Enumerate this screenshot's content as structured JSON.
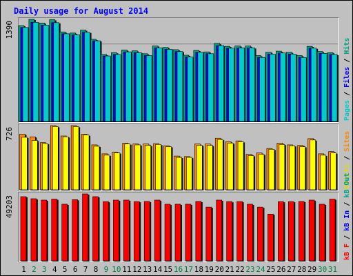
{
  "chart_data": {
    "type": "bar",
    "title": "Daily usage for August 2014",
    "categories": [
      "1",
      "2",
      "3",
      "4",
      "5",
      "6",
      "7",
      "8",
      "9",
      "10",
      "11",
      "12",
      "13",
      "14",
      "15",
      "16",
      "17",
      "18",
      "19",
      "20",
      "21",
      "22",
      "23",
      "24",
      "25",
      "26",
      "27",
      "28",
      "29",
      "30",
      "31"
    ],
    "weekend_days": [
      "2",
      "3",
      "9",
      "10",
      "16",
      "17",
      "23",
      "24",
      "30",
      "31"
    ],
    "panels": [
      {
        "id": "hits-files-pages",
        "max_label": "1390",
        "max_value": 1390,
        "side_labels": [
          {
            "text": "Pages",
            "color": "#00cccc"
          },
          {
            "text": "Files",
            "color": "#0000ff"
          },
          {
            "text": "Hits",
            "color": "#00a080"
          }
        ],
        "series": [
          {
            "name": "Hits",
            "color": "#00a080",
            "values": [
              1305,
              1390,
              1340,
              1385,
              1220,
              1205,
              1245,
              1120,
              915,
              940,
              975,
              965,
              925,
              1030,
              1010,
              980,
              905,
              970,
              950,
              1065,
              1025,
              1030,
              1030,
              900,
              945,
              960,
              945,
              900,
              1025,
              955,
              940
            ]
          },
          {
            "name": "Files",
            "color": "#0000ff",
            "values": [
              1280,
              1350,
              1310,
              1345,
              1195,
              1180,
              1215,
              1100,
              895,
              915,
              950,
              940,
              900,
              1005,
              985,
              955,
              880,
              945,
              925,
              1035,
              1000,
              1005,
              1005,
              875,
              920,
              935,
              920,
              875,
              1000,
              930,
              915
            ]
          },
          {
            "name": "Pages",
            "color": "#00cccc",
            "values": [
              1280,
              1350,
              1310,
              1345,
              1195,
              1180,
              1215,
              1100,
              895,
              915,
              950,
              940,
              900,
              1005,
              985,
              955,
              880,
              945,
              925,
              1035,
              1000,
              1005,
              1005,
              875,
              920,
              935,
              920,
              875,
              1000,
              930,
              915
            ]
          }
        ]
      },
      {
        "id": "visits-sites",
        "max_label": "726",
        "max_value": 726,
        "side_labels": [
          {
            "text": "Visits",
            "color": "#dddd00"
          },
          {
            "text": "Sites",
            "color": "#ff8800"
          }
        ],
        "series": [
          {
            "name": "Sites",
            "color": "#ff8800",
            "values": [
              630,
              600,
              535,
              726,
              610,
              726,
              630,
              510,
              410,
              430,
              530,
              520,
              520,
              525,
              500,
              385,
              380,
              520,
              520,
              585,
              545,
              555,
              405,
              420,
              470,
              530,
              510,
              505,
              580,
              410,
              435
            ]
          },
          {
            "name": "Visits",
            "color": "#ffff00",
            "values": [
              595,
              560,
              525,
              715,
              600,
              715,
              620,
              495,
              395,
              420,
              520,
              510,
              505,
              515,
              490,
              370,
              370,
              505,
              505,
              570,
              530,
              545,
              390,
              405,
              460,
              515,
              500,
              490,
              565,
              395,
              420
            ]
          }
        ]
      },
      {
        "id": "kbytes",
        "max_label": "49203",
        "max_value": 49203,
        "side_labels": [
          {
            "text": "kB F",
            "color": "#ff0000"
          },
          {
            "text": "kB In",
            "color": "#0000ff"
          },
          {
            "text": "kB Out",
            "color": "#00a080"
          }
        ],
        "series": [
          {
            "name": "kB F",
            "color": "#ff0000",
            "values": [
              47200,
              45700,
              44700,
              45400,
              41700,
              45000,
              49203,
              47200,
              43600,
              44700,
              44700,
              43600,
              43700,
              44700,
              41700,
              41700,
              41700,
              43700,
              39600,
              44700,
              43600,
              43600,
              41700,
              39600,
              34500,
              43600,
              43600,
              43700,
              44700,
              41700,
              45400
            ]
          }
        ]
      }
    ]
  }
}
